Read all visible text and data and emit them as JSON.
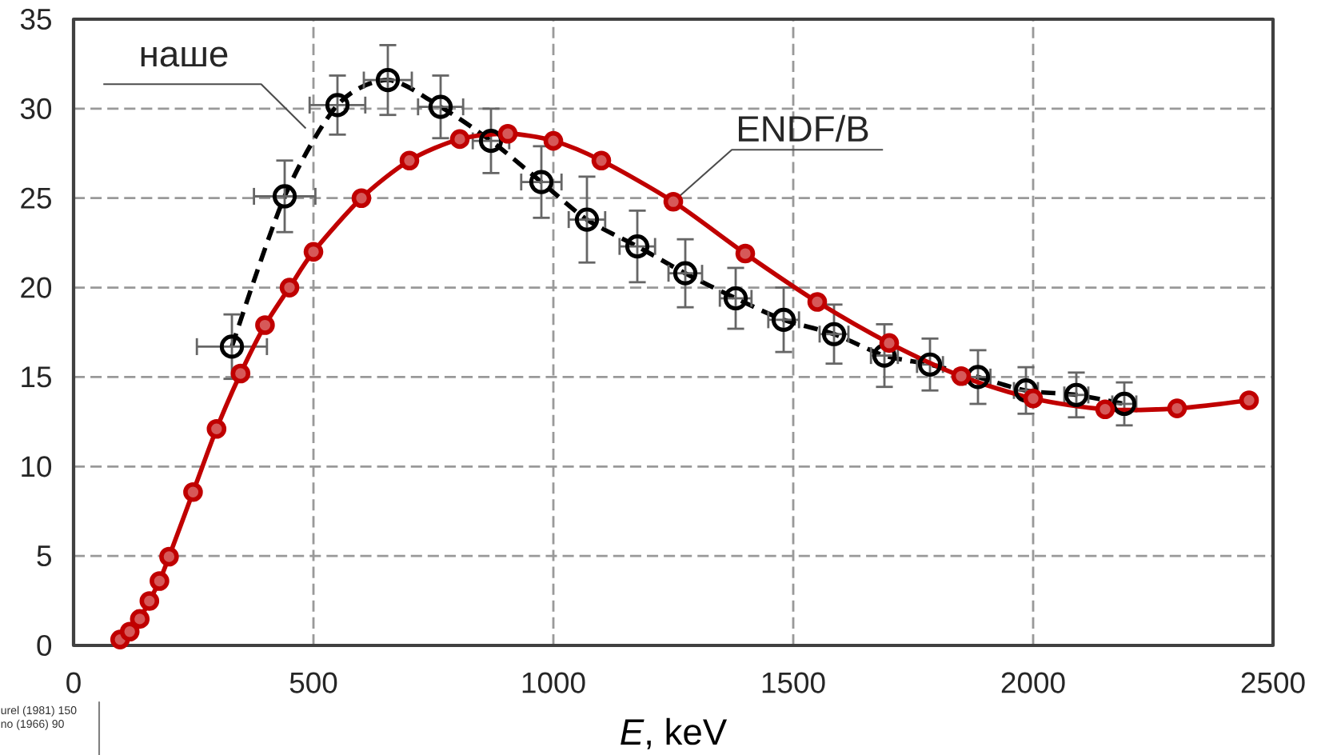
{
  "chart_data": {
    "type": "line",
    "xlabel": "*E*, keV",
    "xlim": [
      0,
      2500
    ],
    "ylim": [
      0,
      35
    ],
    "xticks": [
      0,
      500,
      1000,
      1500,
      2000,
      2500
    ],
    "yticks": [
      0,
      5,
      10,
      15,
      20,
      25,
      30,
      35
    ],
    "grid": true,
    "series": [
      {
        "name": "наше",
        "color": "#000000",
        "marker": "circle",
        "line_style": "dashed",
        "x": [
          330,
          440,
          550,
          655,
          765,
          870,
          975,
          1070,
          1175,
          1275,
          1380,
          1480,
          1585,
          1690,
          1785,
          1885,
          1985,
          2090,
          2190
        ],
        "values": [
          16.7,
          25.1,
          30.2,
          31.6,
          30.1,
          28.2,
          25.9,
          23.8,
          22.3,
          20.8,
          19.4,
          18.2,
          17.4,
          16.2,
          15.7,
          15.0,
          14.25,
          14.0,
          13.5
        ],
        "errors": [
          1.8,
          2.0,
          1.65,
          1.95,
          1.75,
          1.8,
          2.0,
          2.4,
          2.0,
          1.9,
          1.7,
          1.8,
          1.65,
          1.75,
          1.45,
          1.5,
          1.3,
          1.25,
          1.2
        ],
        "xerrors": [
          73,
          64,
          58,
          50,
          47,
          38,
          42,
          38,
          37,
          35,
          33,
          32,
          30,
          28,
          27,
          26,
          25,
          25,
          25
        ]
      },
      {
        "name": "ENDF/B",
        "color": "#c00000",
        "marker": "circle",
        "line_style": "solid",
        "x": [
          97,
          117,
          138,
          158,
          179,
          199,
          249,
          298,
          348,
          399,
          450,
          500,
          600,
          700,
          805,
          905,
          1000,
          1100,
          1250,
          1400,
          1550,
          1700,
          1850,
          2000,
          2150,
          2300,
          2450
        ],
        "values": [
          0.33,
          0.77,
          1.48,
          2.48,
          3.6,
          4.96,
          8.57,
          12.1,
          15.2,
          17.9,
          20.0,
          22.0,
          25.0,
          27.1,
          28.3,
          28.6,
          28.2,
          27.1,
          24.8,
          21.9,
          19.2,
          16.9,
          15.05,
          13.8,
          13.2,
          13.25,
          13.7
        ]
      }
    ],
    "annotations": [
      "urel (1981) 150",
      "no (1966) 90"
    ]
  }
}
